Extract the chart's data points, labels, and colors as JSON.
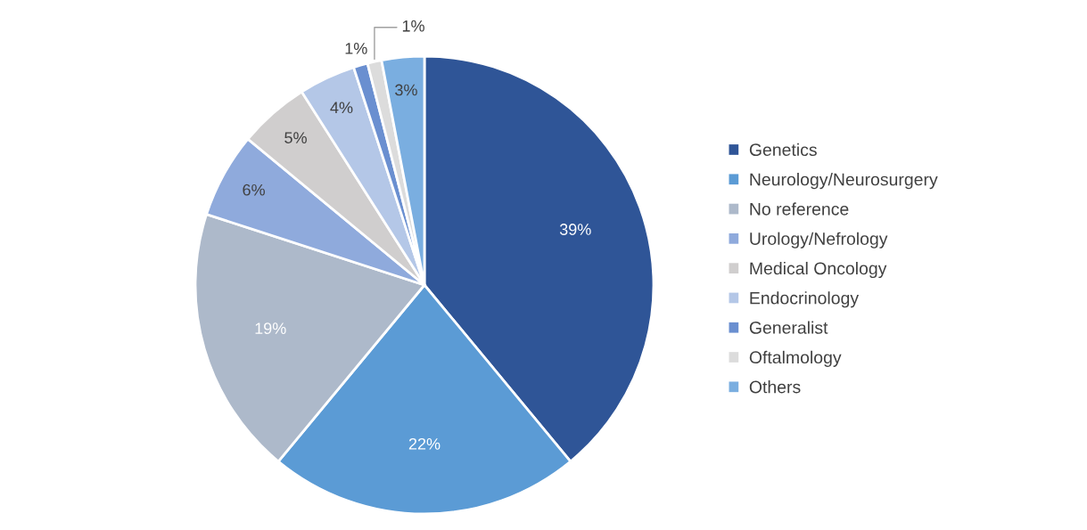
{
  "chart_data": {
    "type": "pie",
    "categories": [
      "Genetics",
      "Neurology/Neurosurgery",
      "No reference",
      "Urology/Nefrology",
      "Medical Oncology",
      "Endocrinology",
      "Generalist",
      "Oftalmology",
      "Others"
    ],
    "values": [
      39,
      22,
      19,
      6,
      5,
      4,
      1,
      1,
      3
    ],
    "value_labels": [
      "39%",
      "22%",
      "19%",
      "6%",
      "5%",
      "4%",
      "1%",
      "1%",
      "3%"
    ],
    "colors": [
      "#2f5597",
      "#5b9bd5",
      "#adb9ca",
      "#8faadc",
      "#d0cece",
      "#b4c7e7",
      "#6a8fd0",
      "#dcdcdc",
      "#7aaee0"
    ],
    "legend": "right"
  }
}
